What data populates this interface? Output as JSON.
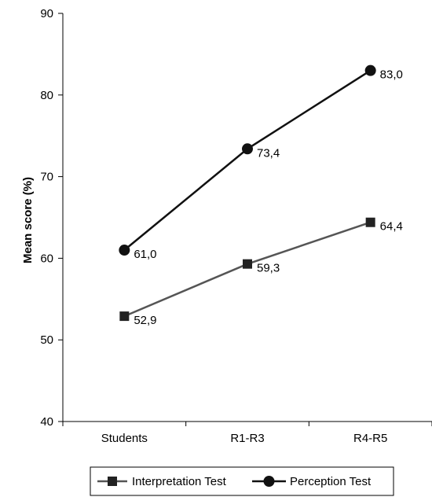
{
  "chart_data": {
    "type": "line",
    "categories": [
      "Students",
      "R1-R3",
      "R4-R5"
    ],
    "series": [
      {
        "name": "Interpretation Test",
        "values": [
          52.9,
          59.3,
          64.4
        ],
        "labels": [
          "52,9",
          "59,3",
          "64,4"
        ],
        "marker": "square",
        "color": "#555555",
        "marker_color": "#222222"
      },
      {
        "name": "Perception Test",
        "values": [
          61.0,
          73.4,
          83.0
        ],
        "labels": [
          "61,0",
          "73,4",
          "83,0"
        ],
        "marker": "circle",
        "color": "#111111",
        "marker_color": "#111111"
      }
    ],
    "ylabel": "Mean score (%)",
    "xlabel": "",
    "ylim": [
      40,
      90
    ],
    "yticks": [
      "40",
      "50",
      "60",
      "70",
      "80",
      "90"
    ],
    "grid": false,
    "legend_position": "bottom"
  }
}
